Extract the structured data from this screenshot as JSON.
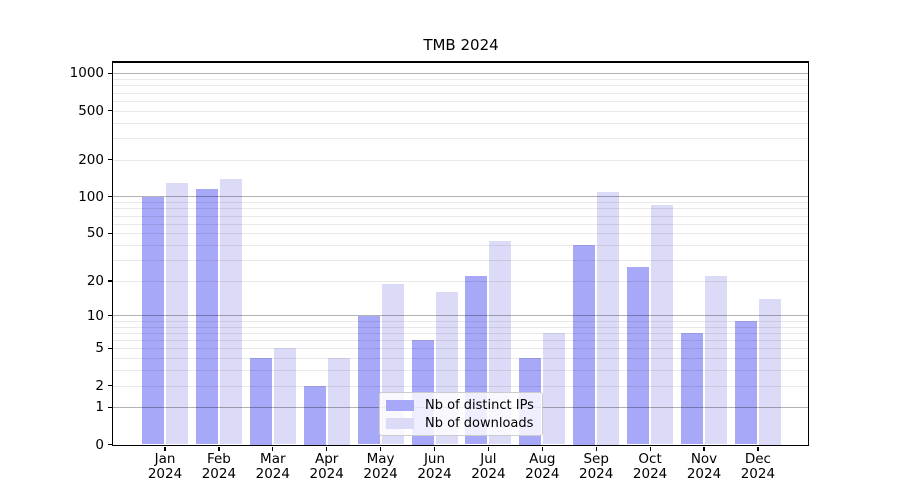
{
  "figure": {
    "title": "TMB 2024"
  },
  "chart_data": {
    "type": "bar",
    "title": "TMB 2024",
    "xlabel": "",
    "ylabel": "",
    "categories": [
      "Jan",
      "Feb",
      "Mar",
      "Apr",
      "May",
      "Jun",
      "Jul",
      "Aug",
      "Sep",
      "Oct",
      "Nov",
      "Dec"
    ],
    "x_tick_second_line": "2024",
    "series": [
      {
        "name": "Nb of distinct IPs",
        "color": "#a8a8f8",
        "values": [
          100,
          115,
          4,
          2,
          10,
          6,
          22,
          4,
          40,
          26,
          7,
          9
        ]
      },
      {
        "name": "Nb of downloads",
        "color": "#dbdbf8",
        "values": [
          130,
          140,
          5,
          4,
          19,
          16,
          43,
          7,
          110,
          85,
          22,
          14
        ]
      }
    ],
    "y_scale": "log10(value+1)",
    "y_ticks": [
      0,
      1,
      2,
      5,
      10,
      20,
      50,
      100,
      200,
      500,
      1000
    ],
    "ylim": [
      0,
      1240
    ],
    "grid": {
      "major_at": [
        1,
        10,
        100,
        1000
      ],
      "minor_multiples": [
        2,
        3,
        4,
        5,
        6,
        7,
        8,
        9
      ],
      "major_color": "#b3b3b3",
      "minor_color": "#e9e9e9",
      "drawn_above_bars": true
    },
    "legend": {
      "entries": [
        "Nb of distinct IPs",
        "Nb of downloads"
      ],
      "location": "inside-lower-center"
    }
  }
}
